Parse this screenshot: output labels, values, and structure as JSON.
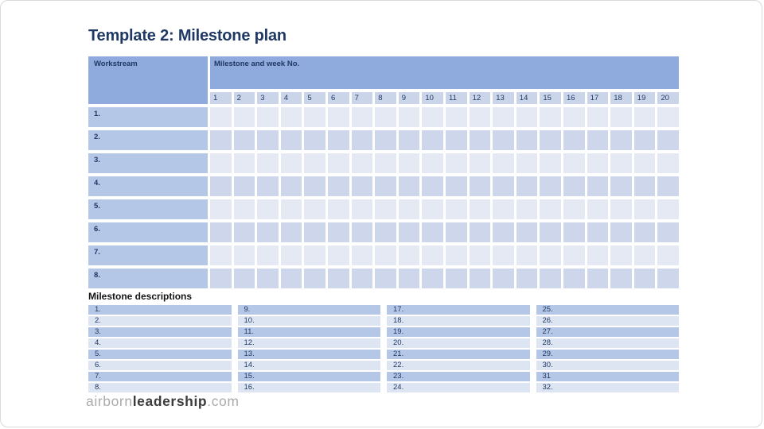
{
  "slide": {
    "title": "Template 2: Milestone plan"
  },
  "table": {
    "workstream_header": "Workstream",
    "milestone_header": "Milestone and week No.",
    "week_numbers": [
      "1",
      "2",
      "3",
      "4",
      "5",
      "6",
      "7",
      "8",
      "9",
      "10",
      "11",
      "12",
      "13",
      "14",
      "15",
      "16",
      "17",
      "18",
      "19",
      "20"
    ],
    "row_labels": [
      "1.",
      "2.",
      "3.",
      "4.",
      "5.",
      "6.",
      "7.",
      "8."
    ],
    "row_count": 8,
    "week_count": 20
  },
  "descriptions": {
    "heading": "Milestone descriptions",
    "columns": [
      [
        "1.",
        "2.",
        "3.",
        "4.",
        "5.",
        "6.",
        "7.",
        "8."
      ],
      [
        "9.",
        "10.",
        "11.",
        "12.",
        "13.",
        "14.",
        "15.",
        "16."
      ],
      [
        "17.",
        "18.",
        "19.",
        "20.",
        "21.",
        "22.",
        "23.",
        "24."
      ],
      [
        "25.",
        "26.",
        "27.",
        "28.",
        "29.",
        "30.",
        "31",
        "32."
      ]
    ]
  },
  "logo": {
    "part1": "airborn",
    "part2": "leadership",
    "part3": ".com"
  },
  "colors": {
    "title_text": "#1F3864",
    "navy_text": "#1F3864",
    "header_fill": "#8FAADC",
    "week_cell_fill": "#CBD5EA",
    "workstream_row_fill": "#B4C7E7",
    "data_row_light": "#E4E9F4",
    "data_row_dark": "#CDD6EB",
    "desc_row_dark": "#B4C7E7",
    "desc_row_light": "#DDE5F2",
    "logo_light": "#ABABAB",
    "logo_dark": "#3C3C3C"
  }
}
